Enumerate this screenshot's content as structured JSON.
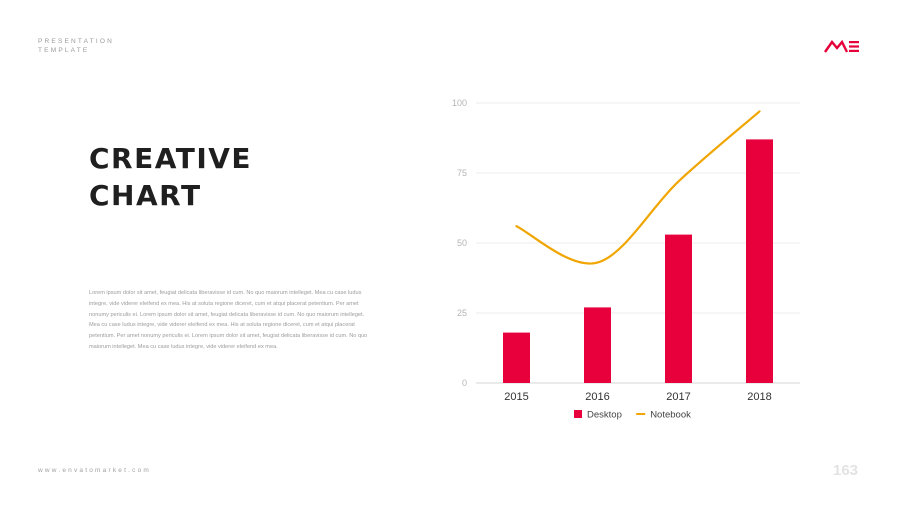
{
  "header": {
    "tag_line1": "PRESENTATION",
    "tag_line2": "TEMPLATE"
  },
  "logo": {
    "icon": "me-logo-icon",
    "color": "#e5003a"
  },
  "title": {
    "line1": "CREATIVE",
    "line2": "CHART"
  },
  "body_text": "Lorem ipsum dolor sit amet, feugiat delicata liberavisse id cum. No quo maiorum intelleget. Mea cu case ludus integre, vide viderer eleifend ex mea. His at soluta regione diceret, cum et atqui placerat petentium. Per amet nonumy periculis ei. Lorem ipsum dolor sit amet, feugiat delicata liberavisse id cum. No quo maiorum intelleget. Mea cu case ludus integre, vide viderer eleifend ex mea. His at soluta regione diceret, cum et atqui placerat petentium. Per amet nonumy periculis ei. Lorem ipsum dolor sit amet, feugiat delicata liberavisse id cum. No quo maiorum intelleget. Mea cu case ludus integre, vide viderer eleifend ex mea.",
  "footer": {
    "url": "www.envatomarket.com",
    "page_number": "163"
  },
  "chart_data": {
    "type": "bar",
    "categories": [
      "2015",
      "2016",
      "2017",
      "2018"
    ],
    "series": [
      {
        "name": "Desktop",
        "kind": "bar",
        "color": "#e8003d",
        "values": [
          18,
          27,
          53,
          87
        ]
      },
      {
        "name": "Notebook",
        "kind": "line",
        "color": "#f0a500",
        "values": [
          56,
          43,
          72,
          97
        ]
      }
    ],
    "ylim": [
      0,
      100
    ],
    "yticks": [
      0,
      25,
      50,
      75,
      100
    ],
    "grid": true,
    "legend_position": "bottom",
    "xlabel": "",
    "ylabel": ""
  }
}
